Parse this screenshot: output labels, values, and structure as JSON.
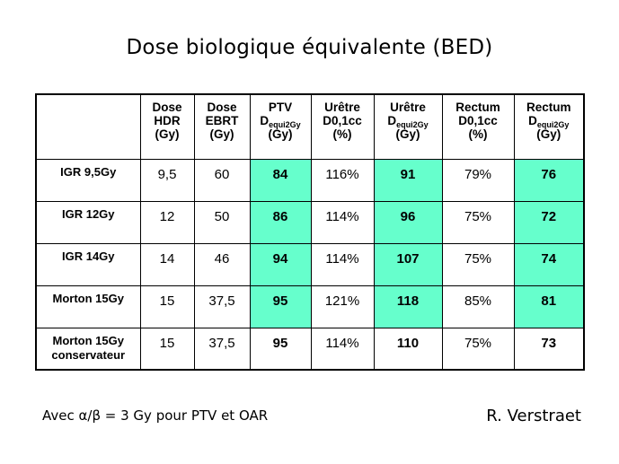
{
  "title": "Dose biologique équivalente (BED)",
  "table": {
    "headers": [
      {
        "lines": [
          "Dose",
          "HDR",
          "(Gy)"
        ]
      },
      {
        "lines": [
          "Dose",
          "EBRT",
          "(Gy)"
        ]
      },
      {
        "lines": [
          "PTV",
          "D",
          "(Gy)"
        ],
        "sub": "equi2Gy"
      },
      {
        "lines": [
          "Urêtre",
          "D0,1cc",
          "(%)"
        ]
      },
      {
        "lines": [
          "Urêtre",
          "D",
          "(Gy)"
        ],
        "sub": "equi2Gy"
      },
      {
        "lines": [
          "Rectum",
          "D0,1cc",
          "(%)"
        ]
      },
      {
        "lines": [
          "Rectum",
          "D",
          "(Gy)"
        ],
        "sub": "equi2Gy"
      }
    ],
    "rows": [
      {
        "label1": "IGR 9,5Gy",
        "label2": "",
        "cells": [
          "9,5",
          "60",
          "84",
          "116%",
          "91",
          "79%",
          "76"
        ]
      },
      {
        "label1": "IGR 12Gy",
        "label2": "",
        "cells": [
          "12",
          "50",
          "86",
          "114%",
          "96",
          "75%",
          "72"
        ]
      },
      {
        "label1": "IGR 14Gy",
        "label2": "",
        "cells": [
          "14",
          "46",
          "94",
          "114%",
          "107",
          "75%",
          "74"
        ]
      },
      {
        "label1": "Morton 15Gy",
        "label2": "",
        "cells": [
          "15",
          "37,5",
          "95",
          "121%",
          "118",
          "85%",
          "81"
        ]
      },
      {
        "label1": "Morton 15Gy",
        "label2": "conservateur",
        "cells": [
          "15",
          "37,5",
          "95",
          "114%",
          "110",
          "75%",
          "73"
        ]
      }
    ]
  },
  "highlight_color": "#66ffcc",
  "footer": {
    "note": "Avec α/β = 3 Gy pour PTV et OAR",
    "author": "R. Verstraet"
  }
}
